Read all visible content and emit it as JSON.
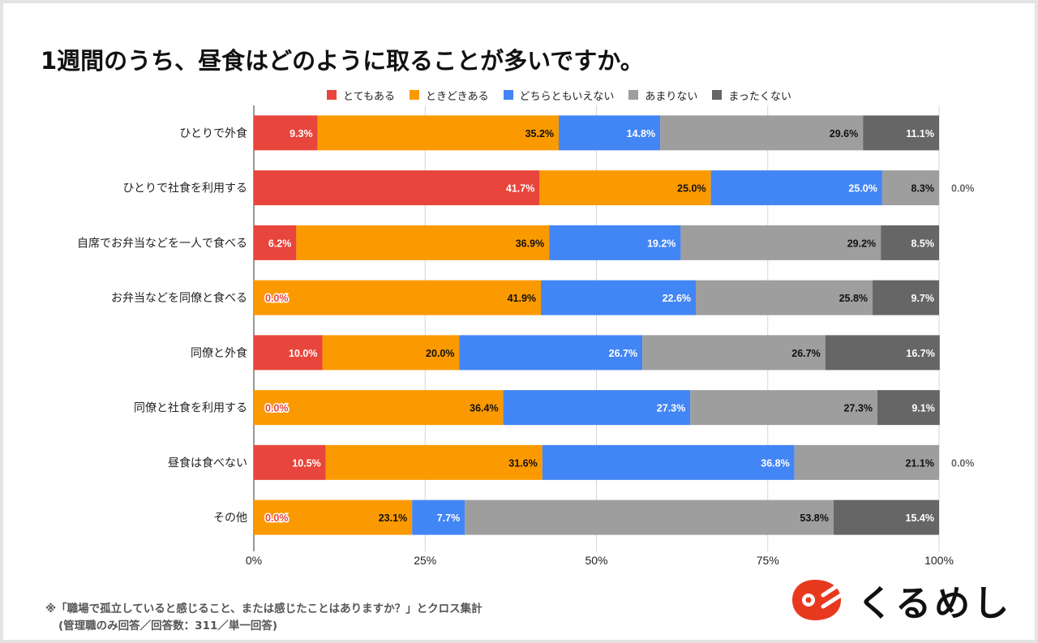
{
  "title": "1週間のうち、昼食はどのように取ることが多いですか。",
  "footnote": {
    "line1": "※「職場で孤立していると感じること、または感じたことはありますか？」とクロス集計",
    "line2": "(管理職のみ回答／回答数：311／単一回答)"
  },
  "logo": {
    "icon": "kurumeshi-logo-icon",
    "text": "くるめし",
    "color": "#e8391f"
  },
  "colors": {
    "series": [
      "#e8453c",
      "#fb9a00",
      "#4285f4",
      "#9e9e9e",
      "#666666"
    ],
    "label_dark": "#111111",
    "label_light": "#ffffff",
    "zero_label": "#e8453c",
    "outside_label": "#666666"
  },
  "chart_data": {
    "type": "bar",
    "orientation": "horizontal",
    "stacked": "100%",
    "title": "1週間のうち、昼食はどのように取ることが多いですか。",
    "xlabel": "",
    "ylabel": "",
    "xlim": [
      0,
      100
    ],
    "x_ticks": [
      "0%",
      "25%",
      "50%",
      "75%",
      "100%"
    ],
    "grid": true,
    "legend_position": "top",
    "categories": [
      "ひとりで外食",
      "ひとりで社食を利用する",
      "自席でお弁当などを一人で食べる",
      "お弁当などを同僚と食べる",
      "同僚と外食",
      "同僚と社食を利用する",
      "昼食は食べない",
      "その他"
    ],
    "series": [
      {
        "name": "とてもある",
        "values": [
          9.3,
          41.7,
          6.2,
          0.0,
          10.0,
          0.0,
          10.5,
          0.0
        ]
      },
      {
        "name": "ときどきある",
        "values": [
          35.2,
          25.0,
          36.9,
          41.9,
          20.0,
          36.4,
          31.6,
          23.1
        ]
      },
      {
        "name": "どちらともいえない",
        "values": [
          14.8,
          25.0,
          19.2,
          22.6,
          26.7,
          27.3,
          36.8,
          7.7
        ]
      },
      {
        "name": "あまりない",
        "values": [
          29.6,
          8.3,
          29.2,
          25.8,
          26.7,
          27.3,
          21.1,
          53.8
        ]
      },
      {
        "name": "まったくない",
        "values": [
          11.1,
          0.0,
          8.5,
          9.7,
          16.7,
          9.1,
          0.0,
          15.4
        ]
      }
    ]
  }
}
